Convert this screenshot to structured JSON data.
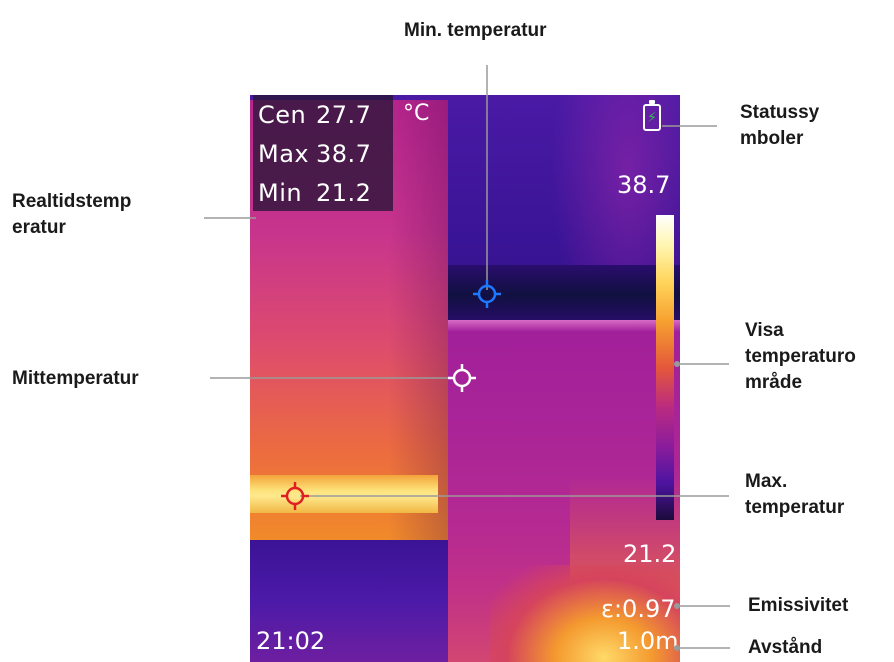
{
  "thermal_image": {
    "readout": {
      "center_label": "Cen",
      "center_value": "27.7",
      "max_label": "Max",
      "max_value": "38.7",
      "min_label": "Min",
      "min_value": "21.2",
      "unit": "°C"
    },
    "scale_max": "38.7",
    "scale_min": "21.2",
    "emissivity": "ε:0.97",
    "distance": "1.0m",
    "time": "21:02",
    "battery_icon": "battery-charging-icon"
  },
  "callouts": {
    "min_temp": "Min. temperatur",
    "status_line1": "Statussy",
    "status_line2": "mboler",
    "realtime_line1": "Realtidstemp",
    "realtime_line2": "eratur",
    "center_temp": "Mittemperatur",
    "range_line1": "Visa",
    "range_line2": "temperaturo",
    "range_line3": "mråde",
    "max_line1": "Max.",
    "max_line2": "temperatur",
    "emissivity": "Emissivitet",
    "distance": "Avstånd"
  },
  "colors": {
    "min_marker": "#1e78ff",
    "center_marker": "#ffffff",
    "max_marker": "#e02020",
    "leader_line": "#9a9a9a"
  }
}
